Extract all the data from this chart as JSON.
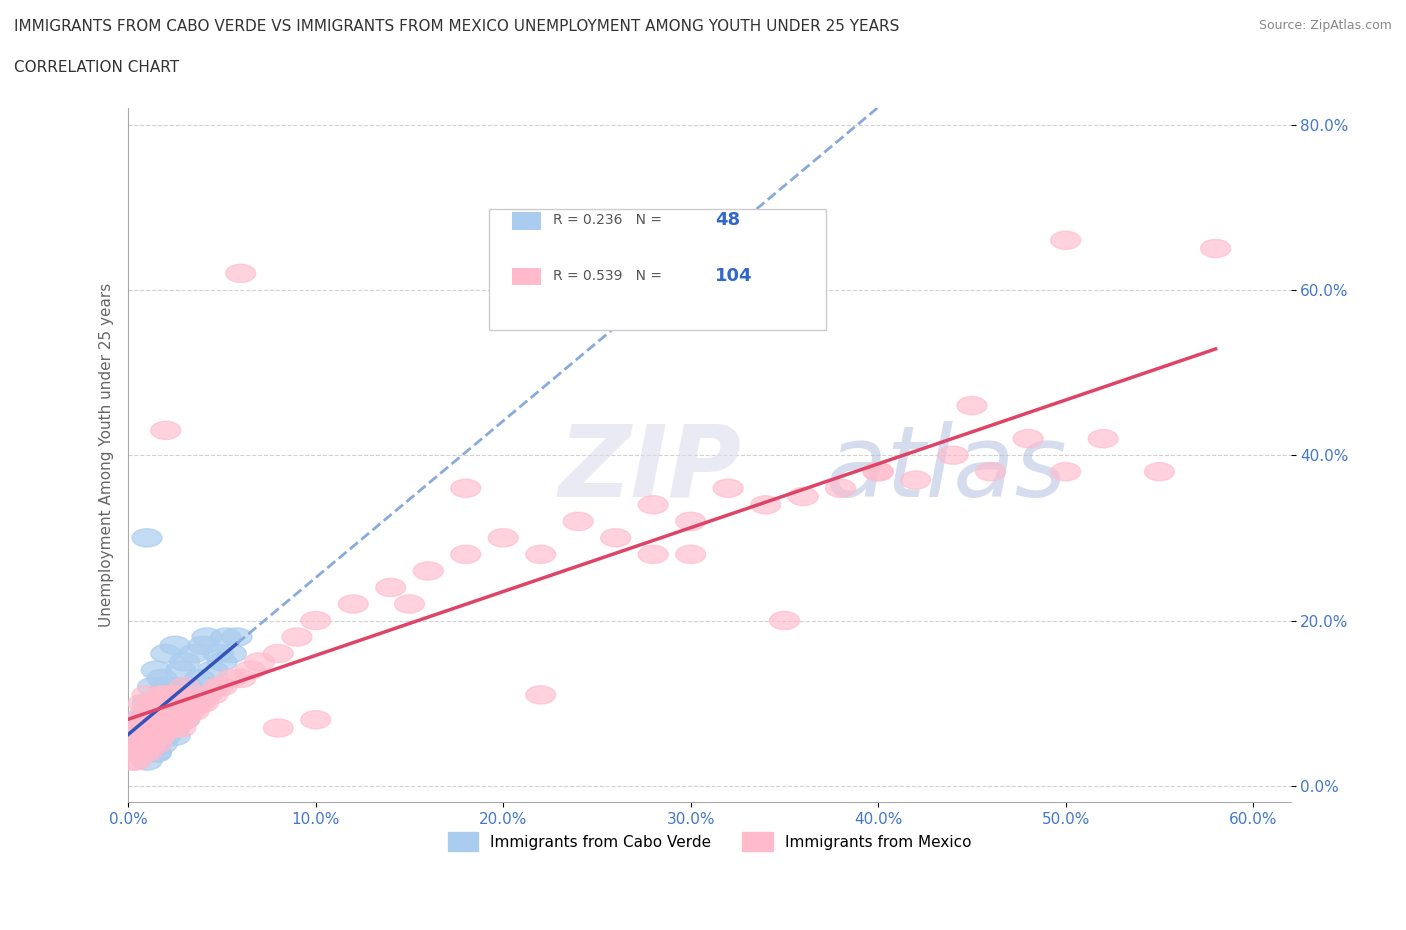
{
  "title_line1": "IMMIGRANTS FROM CABO VERDE VS IMMIGRANTS FROM MEXICO UNEMPLOYMENT AMONG YOUTH UNDER 25 YEARS",
  "title_line2": "CORRELATION CHART",
  "source_text": "Source: ZipAtlas.com",
  "xlabel_ticks": [
    "0.0%",
    "",
    "",
    "",
    "",
    "",
    "",
    "",
    "",
    "",
    "10.0%",
    "",
    "",
    "",
    "",
    "",
    "",
    "",
    "",
    "",
    "20.0%",
    "",
    "",
    "",
    "",
    "",
    "",
    "",
    "",
    "",
    "30.0%",
    "",
    "",
    "",
    "",
    "",
    "",
    "",
    "",
    "",
    "40.0%",
    "",
    "",
    "",
    "",
    "",
    "",
    "",
    "",
    "",
    "50.0%",
    "",
    "",
    "",
    "",
    "",
    "",
    "",
    "",
    "",
    "60.0%"
  ],
  "x_tick_vals": [
    0.0,
    0.1,
    0.2,
    0.3,
    0.4,
    0.5,
    0.6
  ],
  "x_tick_labels": [
    "0.0%",
    "10.0%",
    "20.0%",
    "30.0%",
    "40.0%",
    "50.0%",
    "60.0%"
  ],
  "y_tick_vals": [
    0.0,
    0.2,
    0.4,
    0.6,
    0.8
  ],
  "y_tick_labels": [
    "0.0%",
    "20.0%",
    "40.0%",
    "60.0%",
    "80.0%"
  ],
  "xlim": [
    0.0,
    0.62
  ],
  "ylim": [
    -0.02,
    0.82
  ],
  "ylabel": "Unemployment Among Youth under 25 years",
  "cabo_verde_R": 0.236,
  "cabo_verde_N": 48,
  "mexico_R": 0.539,
  "mexico_N": 104,
  "cabo_verde_color": "#aaccee",
  "mexico_color": "#ffbbcc",
  "cabo_verde_line_color": "#3355bb",
  "cabo_verde_dash_color": "#88aadd",
  "mexico_line_color": "#dd4466",
  "background_color": "#ffffff",
  "grid_color": "#cccccc",
  "watermark_zip": "ZIP",
  "watermark_atlas": "atlas",
  "legend_label_cabo": "Immigrants from Cabo Verde",
  "legend_label_mexico": "Immigrants from Mexico",
  "cabo_verde_x": [
    0.005,
    0.005,
    0.008,
    0.008,
    0.01,
    0.01,
    0.01,
    0.012,
    0.012,
    0.013,
    0.015,
    0.015,
    0.015,
    0.015,
    0.018,
    0.018,
    0.018,
    0.02,
    0.02,
    0.02,
    0.02,
    0.022,
    0.022,
    0.025,
    0.025,
    0.025,
    0.028,
    0.028,
    0.03,
    0.03,
    0.032,
    0.035,
    0.035,
    0.038,
    0.04,
    0.04,
    0.042,
    0.042,
    0.045,
    0.048,
    0.05,
    0.052,
    0.055,
    0.058,
    0.01,
    0.015,
    0.025,
    0.03
  ],
  "cabo_verde_y": [
    0.05,
    0.08,
    0.04,
    0.07,
    0.03,
    0.06,
    0.1,
    0.05,
    0.08,
    0.12,
    0.04,
    0.07,
    0.1,
    0.14,
    0.05,
    0.08,
    0.13,
    0.06,
    0.09,
    0.12,
    0.16,
    0.07,
    0.11,
    0.08,
    0.12,
    0.17,
    0.09,
    0.14,
    0.1,
    0.15,
    0.12,
    0.1,
    0.16,
    0.13,
    0.11,
    0.17,
    0.12,
    0.18,
    0.14,
    0.16,
    0.15,
    0.18,
    0.16,
    0.18,
    0.3,
    0.04,
    0.06,
    0.08
  ],
  "mexico_x": [
    0.002,
    0.003,
    0.004,
    0.004,
    0.005,
    0.005,
    0.006,
    0.006,
    0.007,
    0.007,
    0.008,
    0.008,
    0.008,
    0.009,
    0.009,
    0.01,
    0.01,
    0.01,
    0.011,
    0.011,
    0.012,
    0.012,
    0.013,
    0.013,
    0.014,
    0.014,
    0.015,
    0.015,
    0.016,
    0.016,
    0.017,
    0.017,
    0.018,
    0.018,
    0.019,
    0.02,
    0.02,
    0.021,
    0.022,
    0.022,
    0.023,
    0.024,
    0.025,
    0.025,
    0.026,
    0.027,
    0.028,
    0.028,
    0.03,
    0.03,
    0.032,
    0.033,
    0.034,
    0.035,
    0.036,
    0.038,
    0.04,
    0.042,
    0.045,
    0.048,
    0.05,
    0.055,
    0.06,
    0.065,
    0.07,
    0.08,
    0.09,
    0.1,
    0.12,
    0.14,
    0.16,
    0.18,
    0.2,
    0.22,
    0.24,
    0.26,
    0.28,
    0.3,
    0.32,
    0.34,
    0.36,
    0.38,
    0.4,
    0.42,
    0.44,
    0.46,
    0.48,
    0.5,
    0.52,
    0.55,
    0.58,
    0.02,
    0.06,
    0.35,
    0.45,
    0.28,
    0.5,
    0.18,
    0.1,
    0.3,
    0.4,
    0.22,
    0.15,
    0.08
  ],
  "mexico_y": [
    0.03,
    0.04,
    0.03,
    0.06,
    0.04,
    0.07,
    0.04,
    0.07,
    0.05,
    0.08,
    0.04,
    0.07,
    0.1,
    0.05,
    0.09,
    0.04,
    0.07,
    0.11,
    0.05,
    0.09,
    0.05,
    0.09,
    0.06,
    0.1,
    0.06,
    0.1,
    0.05,
    0.09,
    0.06,
    0.1,
    0.06,
    0.1,
    0.07,
    0.11,
    0.07,
    0.07,
    0.11,
    0.08,
    0.07,
    0.11,
    0.08,
    0.08,
    0.07,
    0.11,
    0.08,
    0.09,
    0.07,
    0.11,
    0.08,
    0.12,
    0.09,
    0.09,
    0.1,
    0.09,
    0.1,
    0.1,
    0.1,
    0.11,
    0.11,
    0.12,
    0.12,
    0.13,
    0.13,
    0.14,
    0.15,
    0.16,
    0.18,
    0.2,
    0.22,
    0.24,
    0.26,
    0.28,
    0.3,
    0.28,
    0.32,
    0.3,
    0.34,
    0.32,
    0.36,
    0.34,
    0.35,
    0.36,
    0.38,
    0.37,
    0.4,
    0.38,
    0.42,
    0.38,
    0.42,
    0.38,
    0.65,
    0.43,
    0.62,
    0.2,
    0.46,
    0.28,
    0.66,
    0.36,
    0.08,
    0.28,
    0.38,
    0.11,
    0.22,
    0.07
  ]
}
